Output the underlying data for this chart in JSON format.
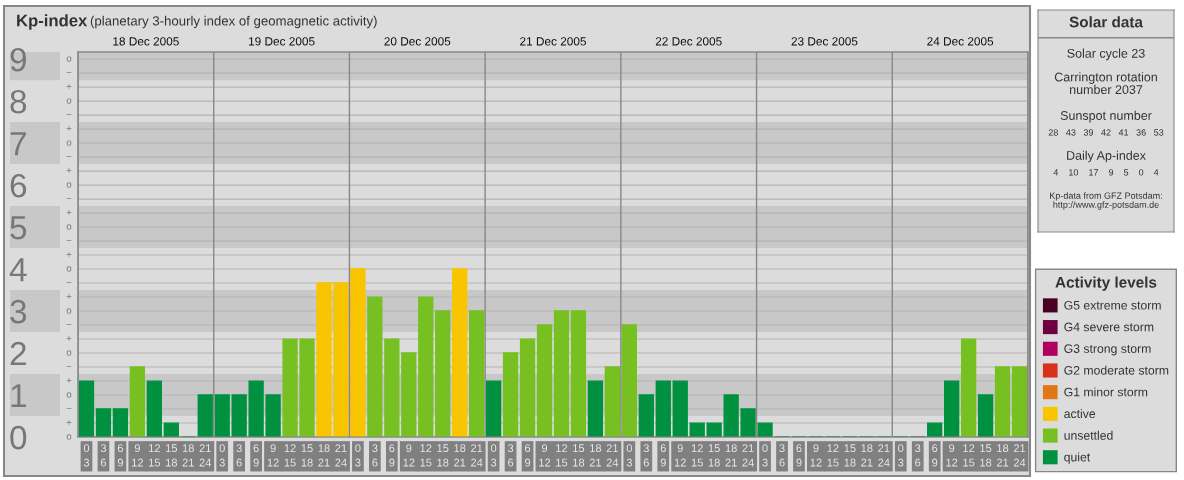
{
  "chart_data": [
    {
      "type": "bar",
      "title": "Kp-index",
      "subtitle": "(planetary 3-hourly index of geomagnetic activity)",
      "categories": [
        "0\n3",
        "3\n6",
        "6\n9",
        "9\n12",
        "12\n15",
        "15\n18",
        "18\n21",
        "21\n24",
        "0\n3",
        "3\n6",
        "6\n9",
        "9\n12",
        "12\n15",
        "15\n18",
        "18\n21",
        "21\n24",
        "0\n3",
        "3\n6",
        "6\n9",
        "9\n12",
        "12\n15",
        "15\n18",
        "18\n21",
        "21\n24",
        "0\n3",
        "3\n6",
        "6\n9",
        "9\n12",
        "12\n15",
        "15\n18",
        "18\n21",
        "21\n24",
        "0\n3",
        "3\n6",
        "6\n9",
        "9\n12",
        "12\n15",
        "15\n18",
        "18\n21",
        "21\n24",
        "0\n3",
        "3\n6",
        "6\n9",
        "9\n12",
        "12\n15",
        "15\n18",
        "18\n21",
        "21\n24",
        "0\n3",
        "3\n6",
        "6\n9",
        "9\n12",
        "12\n15",
        "15\n18",
        "18\n21",
        "21\n24"
      ],
      "series": [
        {
          "name": "G5 extreme storm",
          "color": "#4a0026",
          "values": [
            null,
            null,
            null,
            null,
            null,
            null,
            null,
            null,
            null,
            null,
            null,
            null,
            null,
            null,
            null,
            null,
            null,
            null,
            null,
            null,
            null,
            null,
            null,
            null,
            null,
            null,
            null,
            null,
            null,
            null,
            null,
            null,
            null,
            null,
            null,
            null,
            null,
            null,
            null,
            null,
            null,
            null,
            null,
            null,
            null,
            null,
            null,
            null,
            null,
            null,
            null,
            null,
            null,
            null,
            null,
            null
          ]
        },
        {
          "name": "G4 severe storm",
          "color": "#6e0040",
          "values": [
            null,
            null,
            null,
            null,
            null,
            null,
            null,
            null,
            null,
            null,
            null,
            null,
            null,
            null,
            null,
            null,
            null,
            null,
            null,
            null,
            null,
            null,
            null,
            null,
            null,
            null,
            null,
            null,
            null,
            null,
            null,
            null,
            null,
            null,
            null,
            null,
            null,
            null,
            null,
            null,
            null,
            null,
            null,
            null,
            null,
            null,
            null,
            null,
            null,
            null,
            null,
            null,
            null,
            null,
            null,
            null
          ]
        },
        {
          "name": "G3 strong storm",
          "color": "#b0005f",
          "values": [
            null,
            null,
            null,
            null,
            null,
            null,
            null,
            null,
            null,
            null,
            null,
            null,
            null,
            null,
            null,
            null,
            null,
            null,
            null,
            null,
            null,
            null,
            null,
            null,
            null,
            null,
            null,
            null,
            null,
            null,
            null,
            null,
            null,
            null,
            null,
            null,
            null,
            null,
            null,
            null,
            null,
            null,
            null,
            null,
            null,
            null,
            null,
            null,
            null,
            null,
            null,
            null,
            null,
            null,
            null,
            null
          ]
        },
        {
          "name": "G2 moderate storm",
          "color": "#d8301a",
          "values": [
            null,
            null,
            null,
            null,
            null,
            null,
            null,
            null,
            null,
            null,
            null,
            null,
            null,
            null,
            null,
            null,
            null,
            null,
            null,
            null,
            null,
            null,
            null,
            null,
            null,
            null,
            null,
            null,
            null,
            null,
            null,
            null,
            null,
            null,
            null,
            null,
            null,
            null,
            null,
            null,
            null,
            null,
            null,
            null,
            null,
            null,
            null,
            null,
            null,
            null,
            null,
            null,
            null,
            null,
            null,
            null
          ]
        },
        {
          "name": "G1 minor storm",
          "color": "#e07818",
          "values": [
            null,
            null,
            null,
            null,
            null,
            null,
            null,
            null,
            null,
            null,
            null,
            null,
            null,
            null,
            null,
            null,
            null,
            null,
            null,
            null,
            null,
            null,
            null,
            null,
            null,
            null,
            null,
            null,
            null,
            null,
            null,
            null,
            null,
            null,
            null,
            null,
            null,
            null,
            null,
            null,
            null,
            null,
            null,
            null,
            null,
            null,
            null,
            null,
            null,
            null,
            null,
            null,
            null,
            null,
            null,
            null
          ]
        },
        {
          "name": "active",
          "color": "#f9c400",
          "values": [
            null,
            null,
            null,
            null,
            null,
            null,
            null,
            null,
            null,
            null,
            null,
            null,
            null,
            null,
            3.67,
            3.67,
            4,
            null,
            null,
            null,
            null,
            null,
            4,
            null,
            null,
            null,
            null,
            null,
            null,
            null,
            null,
            null,
            null,
            null,
            null,
            null,
            null,
            null,
            null,
            null,
            null,
            null,
            null,
            null,
            null,
            null,
            null,
            null,
            null,
            null,
            null,
            null,
            null,
            null,
            null,
            null
          ]
        },
        {
          "name": "unsettled",
          "color": "#77c022",
          "values": [
            null,
            null,
            null,
            1.67,
            null,
            null,
            null,
            null,
            null,
            null,
            null,
            null,
            2.33,
            2.33,
            null,
            null,
            null,
            3.33,
            2.33,
            2,
            3.33,
            3,
            null,
            3,
            null,
            2,
            2.33,
            2.67,
            3,
            3,
            null,
            1.67,
            2.67,
            null,
            null,
            null,
            null,
            null,
            null,
            null,
            null,
            null,
            null,
            null,
            null,
            null,
            null,
            null,
            null,
            null,
            null,
            null,
            2.33,
            null,
            1.67,
            1.67
          ]
        },
        {
          "name": "quiet",
          "color": "#009140",
          "values": [
            1.33,
            0.67,
            0.67,
            null,
            1.33,
            0.33,
            0,
            1,
            1,
            1,
            1.33,
            1,
            null,
            null,
            null,
            null,
            null,
            null,
            null,
            null,
            null,
            null,
            null,
            null,
            1.33,
            null,
            null,
            null,
            null,
            null,
            1.33,
            null,
            null,
            1,
            1.33,
            1.33,
            0.33,
            0.33,
            1,
            0.67,
            0.33,
            0,
            0,
            0,
            0,
            0,
            0,
            0,
            0,
            0,
            0.33,
            1.33,
            null,
            1,
            null,
            null
          ]
        }
      ],
      "ylim": [
        0,
        9.17
      ],
      "yticks": [
        0,
        1,
        2,
        3,
        4,
        5,
        6,
        7,
        8,
        9
      ],
      "annotations": [
        "o",
        "+",
        "−",
        "o",
        "+",
        "−",
        "o",
        "+",
        "−",
        "o",
        "+",
        "−",
        "o",
        "+",
        "−",
        "o",
        "+",
        "−",
        "o",
        "+",
        "−",
        "o",
        "+",
        "−",
        "o",
        "+",
        "−",
        "o"
      ],
      "x2lim": [
        "2005-12-18",
        "2005-12-25"
      ],
      "x2ticks": [
        {
          "value": "2005-12-18",
          "label": null
        },
        {
          "value": "2005-12-18T12:00",
          "label": "18 Dec 2005"
        },
        {
          "value": "2005-12-19",
          "label": null
        },
        {
          "value": "2005-12-19T12:00",
          "label": "19 Dec 2005"
        },
        {
          "value": "2005-12-20",
          "label": null
        },
        {
          "value": "2005-12-20T12:00",
          "label": "20 Dec 2005"
        },
        {
          "value": "2005-12-21",
          "label": null
        },
        {
          "value": "2005-12-21T12:00",
          "label": "21 Dec 2005"
        },
        {
          "value": "2005-12-22",
          "label": null
        },
        {
          "value": "2005-12-22T12:00",
          "label": "22 Dec 2005"
        },
        {
          "value": "2005-12-23",
          "label": null
        },
        {
          "value": "2005-12-23T12:00",
          "label": "23 Dec 2005"
        },
        {
          "value": "2005-12-24",
          "label": null
        },
        {
          "value": "2005-12-24T12:00",
          "label": "24 Dec 2005"
        },
        {
          "value": "2005-12-25",
          "label": null
        }
      ],
      "bands": [
        {
          "axis": "y",
          "from": 0.5,
          "to": 1.5,
          "color": "#c8c8c8"
        },
        {
          "axis": "y",
          "from": 2.5,
          "to": 3.5,
          "color": "#c8c8c8"
        },
        {
          "axis": "y",
          "from": 4.5,
          "to": 5.5,
          "color": "#c8c8c8"
        },
        {
          "axis": "y",
          "from": 6.5,
          "to": 7.5,
          "color": "#c8c8c8"
        },
        {
          "axis": "y",
          "from": 8.5,
          "to": 9.17,
          "color": "#c8c8c8"
        }
      ],
      "grid": true,
      "legend": "right",
      "legend_title": "Activity levels"
    },
    {
      "type": "other",
      "title": "Solar data",
      "annotations": [
        "Solar cycle 23",
        "Carrington rotation\nnumber 2037",
        "Sunspot number",
        "28   43   39   42   41   36   53",
        "Daily Ap-index",
        "4    10    17    9    5    0    4",
        "Kp-data from GFZ Potsdam:\nhttp://www.gfz-potsdam.de"
      ]
    }
  ]
}
